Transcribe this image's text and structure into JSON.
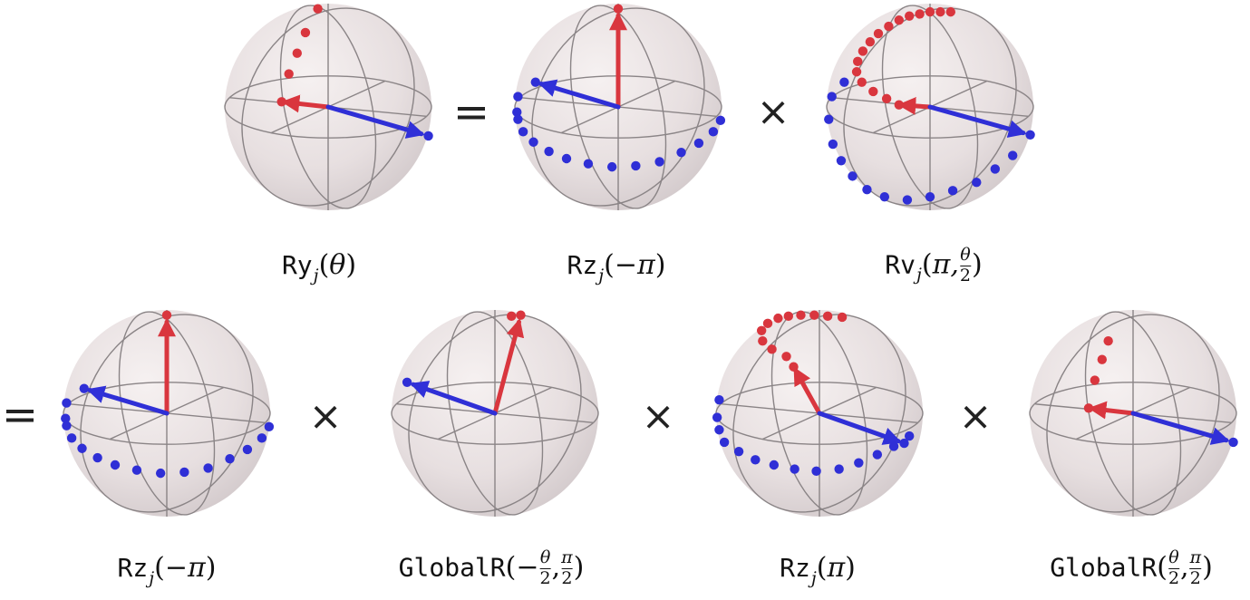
{
  "operators": {
    "equals": "=",
    "times": "×"
  },
  "spheres": [
    {
      "id": "ry-theta",
      "label": {
        "name": "Ry",
        "sub": "j",
        "open": "(",
        "arg": "θ",
        "close": ")"
      },
      "arrows": [
        {
          "color": "red",
          "dir": [
            -0.45,
            -0.05
          ]
        },
        {
          "color": "blue",
          "dir": [
            0.97,
            0.28
          ]
        }
      ],
      "dots": [
        {
          "color": "red",
          "pts": [
            [
              -0.45,
              -0.05
            ],
            [
              -0.38,
              -0.32
            ],
            [
              -0.3,
              -0.52
            ],
            [
              -0.22,
              -0.72
            ],
            [
              -0.1,
              -0.95
            ]
          ]
        },
        {
          "color": "blue",
          "pts": [
            [
              0.97,
              0.28
            ]
          ]
        }
      ]
    },
    {
      "id": "rz-minus-pi-top",
      "label": {
        "name": "Rz",
        "sub": "j",
        "open": "(",
        "arg": "−π",
        "close": ")"
      },
      "arrows": [
        {
          "color": "red",
          "dir": [
            0.0,
            -0.95
          ]
        },
        {
          "color": "blue",
          "dir": [
            -0.8,
            -0.24
          ]
        }
      ],
      "dots": [
        {
          "color": "red",
          "pts": [
            [
              0.0,
              -0.95
            ]
          ]
        },
        {
          "color": "blue",
          "pts": [
            [
              -0.8,
              -0.24
            ],
            [
              -0.97,
              -0.1
            ],
            [
              -0.98,
              0.05
            ],
            [
              -0.97,
              0.12
            ],
            [
              -0.92,
              0.24
            ],
            [
              -0.82,
              0.34
            ],
            [
              -0.67,
              0.43
            ],
            [
              -0.5,
              0.5
            ],
            [
              -0.29,
              0.55
            ],
            [
              -0.06,
              0.58
            ],
            [
              0.17,
              0.57
            ],
            [
              0.4,
              0.53
            ],
            [
              0.61,
              0.44
            ],
            [
              0.78,
              0.35
            ],
            [
              0.92,
              0.24
            ],
            [
              0.99,
              0.13
            ]
          ]
        }
      ]
    },
    {
      "id": "rv-pi-theta2",
      "label": {
        "name": "Rv",
        "sub": "j",
        "open": "(",
        "arg": "π,",
        "frac_num": "θ",
        "frac_den": "2",
        "close": ")"
      },
      "arrows": [
        {
          "color": "red",
          "dir": [
            -0.3,
            -0.02
          ]
        },
        {
          "color": "blue",
          "dir": [
            0.97,
            0.27
          ]
        }
      ],
      "dots": [
        {
          "color": "red",
          "pts": [
            [
              -0.3,
              -0.02
            ],
            [
              -0.42,
              -0.08
            ],
            [
              -0.55,
              -0.15
            ],
            [
              -0.66,
              -0.24
            ],
            [
              -0.71,
              -0.34
            ],
            [
              -0.7,
              -0.44
            ],
            [
              -0.65,
              -0.54
            ],
            [
              -0.58,
              -0.63
            ],
            [
              -0.5,
              -0.71
            ],
            [
              -0.4,
              -0.78
            ],
            [
              -0.3,
              -0.84
            ],
            [
              -0.2,
              -0.88
            ],
            [
              -0.1,
              -0.9
            ],
            [
              0.0,
              -0.92
            ],
            [
              0.1,
              -0.92
            ],
            [
              0.2,
              -0.92
            ]
          ]
        },
        {
          "color": "blue",
          "pts": [
            [
              0.97,
              0.27
            ],
            [
              -0.83,
              -0.24
            ],
            [
              -0.95,
              -0.1
            ],
            [
              -0.98,
              0.12
            ],
            [
              -0.94,
              0.36
            ],
            [
              -0.86,
              0.52
            ],
            [
              -0.75,
              0.67
            ],
            [
              -0.61,
              0.8
            ],
            [
              -0.44,
              0.87
            ],
            [
              -0.22,
              0.9
            ],
            [
              0.0,
              0.87
            ],
            [
              0.22,
              0.81
            ],
            [
              0.45,
              0.73
            ],
            [
              0.63,
              0.6
            ],
            [
              0.8,
              0.47
            ]
          ]
        }
      ]
    },
    {
      "id": "rz-minus-pi-bottom",
      "label": {
        "name": "Rz",
        "sub": "j",
        "open": "(",
        "arg": "−π",
        "close": ")"
      },
      "arrows": [
        {
          "color": "red",
          "dir": [
            0.0,
            -0.95
          ]
        },
        {
          "color": "blue",
          "dir": [
            -0.8,
            -0.24
          ]
        }
      ],
      "dots": [
        {
          "color": "red",
          "pts": [
            [
              0.0,
              -0.95
            ]
          ]
        },
        {
          "color": "blue",
          "pts": [
            [
              -0.8,
              -0.24
            ],
            [
              -0.97,
              -0.1
            ],
            [
              -0.98,
              0.05
            ],
            [
              -0.97,
              0.12
            ],
            [
              -0.92,
              0.24
            ],
            [
              -0.82,
              0.34
            ],
            [
              -0.67,
              0.43
            ],
            [
              -0.5,
              0.5
            ],
            [
              -0.29,
              0.55
            ],
            [
              -0.06,
              0.58
            ],
            [
              0.17,
              0.57
            ],
            [
              0.4,
              0.53
            ],
            [
              0.61,
              0.44
            ],
            [
              0.78,
              0.35
            ],
            [
              0.92,
              0.24
            ],
            [
              0.99,
              0.13
            ]
          ]
        }
      ]
    },
    {
      "id": "globalr-minus",
      "label": {
        "name": "GlobalR",
        "open": "(",
        "arg": "−",
        "frac_num": "θ",
        "frac_den": "2",
        "sep": ",",
        "frac2_num": "π",
        "frac2_den": "2",
        "close": ")"
      },
      "arrows": [
        {
          "color": "red",
          "dir": [
            0.25,
            -0.95
          ]
        },
        {
          "color": "blue",
          "dir": [
            -0.85,
            -0.3
          ]
        }
      ],
      "dots": [
        {
          "color": "red",
          "pts": [
            [
              0.25,
              -0.95
            ],
            [
              0.16,
              -0.94
            ]
          ]
        },
        {
          "color": "blue",
          "pts": [
            [
              -0.85,
              -0.3
            ]
          ]
        }
      ]
    },
    {
      "id": "rz-pi",
      "label": {
        "name": "Rz",
        "sub": "j",
        "open": "(",
        "arg": "π",
        "close": ")"
      },
      "arrows": [
        {
          "color": "red",
          "dir": [
            -0.25,
            -0.45
          ]
        },
        {
          "color": "blue",
          "dir": [
            0.82,
            0.29
          ]
        }
      ],
      "dots": [
        {
          "color": "red",
          "pts": [
            [
              -0.25,
              -0.45
            ],
            [
              -0.32,
              -0.55
            ],
            [
              -0.46,
              -0.62
            ],
            [
              -0.55,
              -0.7
            ],
            [
              -0.56,
              -0.8
            ],
            [
              -0.5,
              -0.87
            ],
            [
              -0.4,
              -0.92
            ],
            [
              -0.3,
              -0.94
            ],
            [
              -0.18,
              -0.95
            ],
            [
              -0.05,
              -0.95
            ],
            [
              0.08,
              -0.94
            ],
            [
              0.22,
              -0.93
            ]
          ]
        },
        {
          "color": "blue",
          "pts": [
            [
              0.82,
              0.29
            ],
            [
              -0.97,
              -0.13
            ],
            [
              -0.99,
              0.04
            ],
            [
              -0.97,
              0.16
            ],
            [
              -0.92,
              0.28
            ],
            [
              -0.78,
              0.37
            ],
            [
              -0.62,
              0.45
            ],
            [
              -0.44,
              0.5
            ],
            [
              -0.24,
              0.54
            ],
            [
              -0.03,
              0.56
            ],
            [
              0.19,
              0.54
            ],
            [
              0.38,
              0.48
            ],
            [
              0.56,
              0.4
            ],
            [
              0.72,
              0.32
            ],
            [
              0.87,
              0.22
            ]
          ]
        }
      ]
    },
    {
      "id": "globalr-plus",
      "label": {
        "name": "GlobalR",
        "open": "(",
        "frac_num": "θ",
        "frac_den": "2",
        "sep": ",",
        "frac2_num": "π",
        "frac2_den": "2",
        "close": ")"
      },
      "arrows": [
        {
          "color": "red",
          "dir": [
            -0.43,
            -0.05
          ]
        },
        {
          "color": "blue",
          "dir": [
            0.97,
            0.28
          ]
        }
      ],
      "dots": [
        {
          "color": "red",
          "pts": [
            [
              -0.43,
              -0.05
            ],
            [
              -0.37,
              -0.32
            ],
            [
              -0.3,
              -0.52
            ],
            [
              -0.24,
              -0.7
            ]
          ]
        },
        {
          "color": "blue",
          "pts": [
            [
              0.97,
              0.28
            ]
          ]
        }
      ]
    }
  ]
}
